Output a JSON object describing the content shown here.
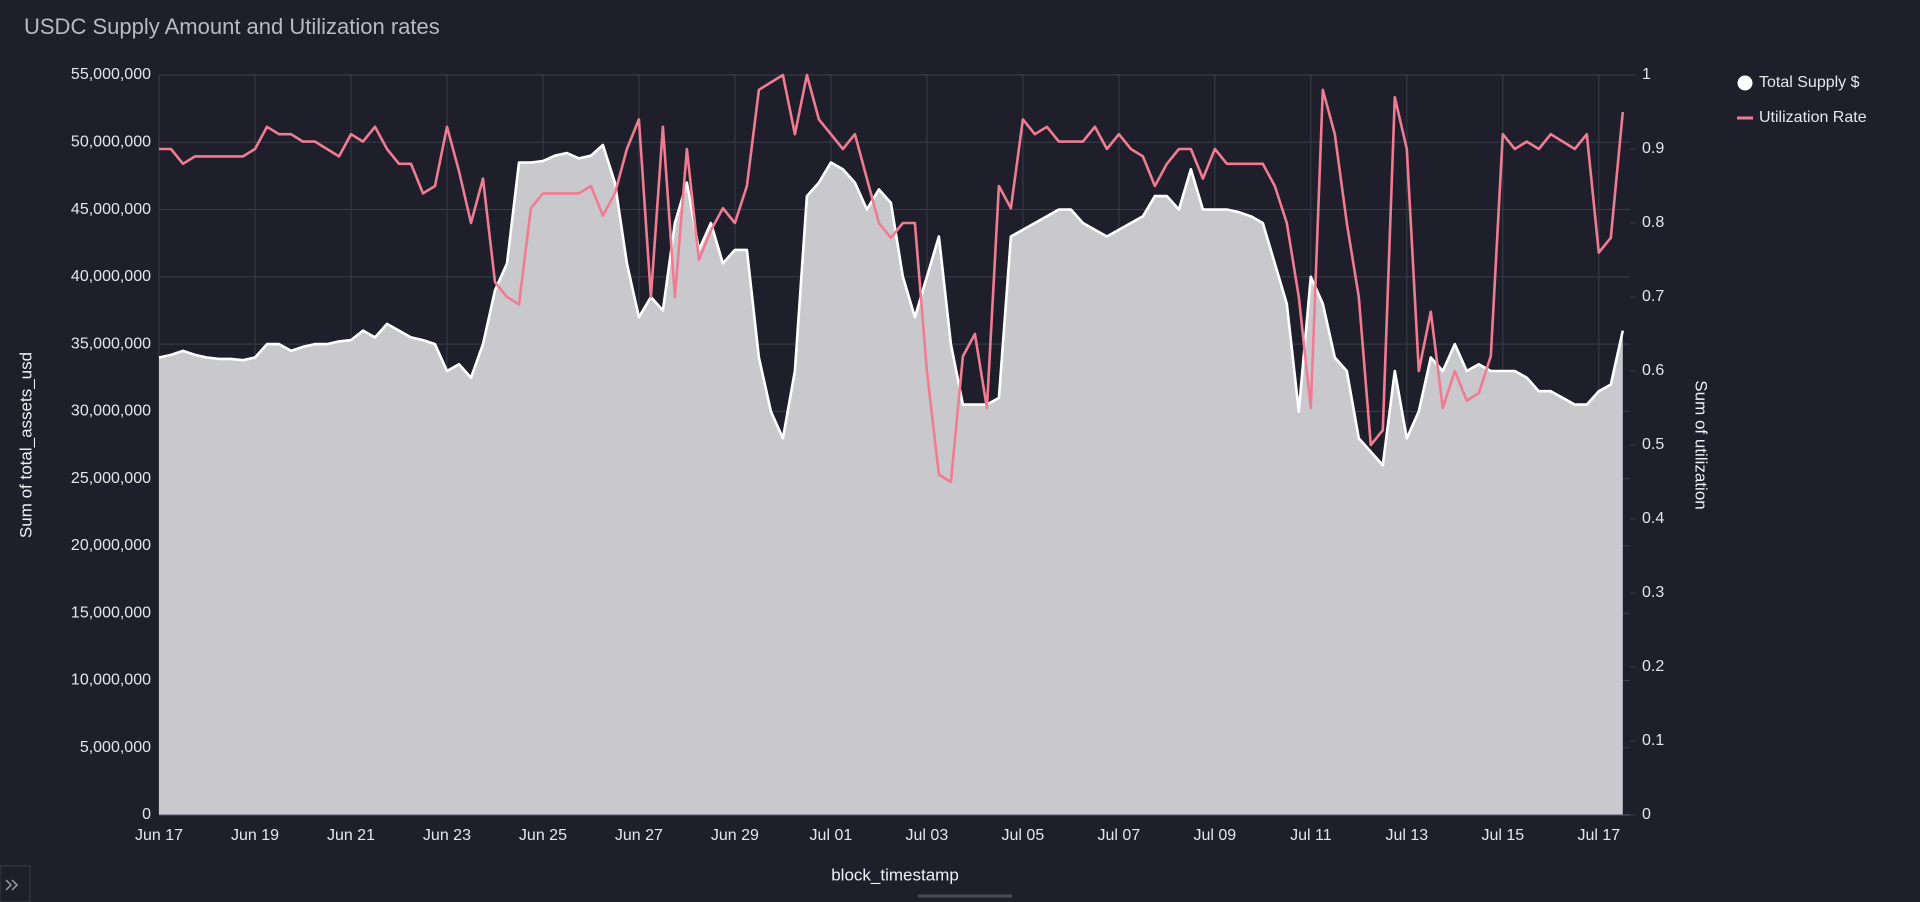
{
  "chart_data": {
    "type": "area_line",
    "title": "USDC Supply Amount and Utilization rates",
    "x_label": "block_timestamp",
    "y_label": "Sum of total_assets_usd",
    "y2_label": "Sum of utilization",
    "legend": "top-right",
    "grid": true,
    "categories": [
      "Jun 17",
      null,
      null,
      null,
      null,
      null,
      null,
      null,
      "Jun 19",
      null,
      null,
      null,
      null,
      null,
      null,
      null,
      "Jun 21",
      null,
      null,
      null,
      null,
      null,
      null,
      null,
      "Jun 23",
      null,
      null,
      null,
      null,
      null,
      null,
      null,
      "Jun 25",
      null,
      null,
      null,
      null,
      null,
      null,
      null,
      "Jun 27",
      null,
      null,
      null,
      null,
      null,
      null,
      null,
      "Jun 29",
      null,
      null,
      null,
      null,
      null,
      null,
      null,
      "Jul 01",
      null,
      null,
      null,
      null,
      null,
      null,
      null,
      "Jul 03",
      null,
      null,
      null,
      null,
      null,
      null,
      null,
      "Jul 05",
      null,
      null,
      null,
      null,
      null,
      null,
      null,
      "Jul 07",
      null,
      null,
      null,
      null,
      null,
      null,
      null,
      "Jul 09",
      null,
      null,
      null,
      null,
      null,
      null,
      null,
      "Jul 11",
      null,
      null,
      null,
      null,
      null,
      null,
      null,
      "Jul 13",
      null,
      null,
      null,
      null,
      null,
      null,
      null,
      "Jul 15",
      null,
      null,
      null,
      null,
      null,
      null,
      null,
      "Jul 17",
      null,
      null
    ],
    "series": [
      {
        "name": "Total Supply $",
        "color": "#ffffff",
        "area_color": "#c9c9cd",
        "axis": "y",
        "values": [
          34000000,
          34200000,
          34500000,
          34200000,
          34000000,
          33900000,
          33900000,
          33800000,
          34000000,
          35000000,
          35000000,
          34500000,
          34800000,
          35000000,
          35000000,
          35200000,
          35300000,
          36000000,
          35500000,
          36500000,
          36000000,
          35500000,
          35300000,
          35000000,
          33000000,
          33500000,
          32500000,
          35000000,
          39000000,
          41000000,
          48500000,
          48500000,
          48600000,
          49000000,
          49200000,
          48800000,
          49000000,
          49800000,
          47000000,
          41000000,
          37000000,
          38500000,
          37500000,
          44000000,
          47000000,
          42000000,
          44000000,
          41000000,
          42000000,
          42000000,
          34000000,
          30000000,
          28000000,
          33000000,
          46000000,
          47000000,
          48500000,
          48000000,
          47000000,
          45000000,
          46500000,
          45500000,
          40000000,
          37000000,
          40000000,
          43000000,
          35000000,
          30500000,
          30500000,
          30500000,
          31000000,
          43000000,
          43500000,
          44000000,
          44500000,
          45000000,
          45000000,
          44000000,
          43500000,
          43000000,
          43500000,
          44000000,
          44500000,
          46000000,
          46000000,
          45000000,
          48000000,
          45000000,
          45000000,
          45000000,
          44800000,
          44500000,
          44000000,
          41000000,
          38000000,
          30000000,
          40000000,
          38000000,
          34000000,
          33000000,
          28000000,
          27000000,
          26000000,
          33000000,
          28000000,
          30000000,
          34000000,
          33000000,
          35000000,
          33000000,
          33500000,
          33000000,
          33000000,
          33000000,
          32500000,
          31500000,
          31500000,
          31000000,
          30500000,
          30500000,
          31500000,
          32000000,
          36000000
        ]
      },
      {
        "name": "Utilization Rate",
        "color": "#f07c92",
        "axis": "y2",
        "values": [
          0.9,
          0.9,
          0.88,
          0.89,
          0.89,
          0.89,
          0.89,
          0.89,
          0.9,
          0.93,
          0.92,
          0.92,
          0.91,
          0.91,
          0.9,
          0.89,
          0.92,
          0.91,
          0.93,
          0.9,
          0.88,
          0.88,
          0.84,
          0.85,
          0.93,
          0.87,
          0.8,
          0.86,
          0.72,
          0.7,
          0.69,
          0.82,
          0.84,
          0.84,
          0.84,
          0.84,
          0.85,
          0.81,
          0.84,
          0.9,
          0.94,
          0.7,
          0.93,
          0.7,
          0.9,
          0.75,
          0.79,
          0.82,
          0.8,
          0.85,
          0.98,
          0.99,
          1.0,
          0.92,
          1.0,
          0.94,
          0.92,
          0.9,
          0.92,
          0.86,
          0.8,
          0.78,
          0.8,
          0.8,
          0.6,
          0.46,
          0.45,
          0.62,
          0.65,
          0.55,
          0.85,
          0.82,
          0.94,
          0.92,
          0.93,
          0.91,
          0.91,
          0.91,
          0.93,
          0.9,
          0.92,
          0.9,
          0.89,
          0.85,
          0.88,
          0.9,
          0.9,
          0.86,
          0.9,
          0.88,
          0.88,
          0.88,
          0.88,
          0.85,
          0.8,
          0.7,
          0.55,
          0.98,
          0.92,
          0.8,
          0.7,
          0.5,
          0.52,
          0.97,
          0.9,
          0.6,
          0.68,
          0.55,
          0.6,
          0.56,
          0.57,
          0.62,
          0.92,
          0.9,
          0.91,
          0.9,
          0.92,
          0.91,
          0.9,
          0.92,
          0.76,
          0.78,
          0.95
        ]
      }
    ],
    "ylim": [
      0,
      55000000
    ],
    "yticks": [
      0,
      {
        "value": 5000000,
        "label": "5,000,000"
      },
      {
        "value": 10000000,
        "label": "10,000,000"
      },
      {
        "value": 15000000,
        "label": "15,000,000"
      },
      {
        "value": 20000000,
        "label": "20,000,000"
      },
      {
        "value": 25000000,
        "label": "25,000,000"
      },
      {
        "value": 30000000,
        "label": "30,000,000"
      },
      {
        "value": 35000000,
        "label": "35,000,000"
      },
      {
        "value": 40000000,
        "label": "40,000,000"
      },
      {
        "value": 45000000,
        "label": "45,000,000"
      },
      {
        "value": 50000000,
        "label": "50,000,000"
      },
      {
        "value": 55000000,
        "label": "55,000,000"
      }
    ],
    "y2lim": [
      0,
      1
    ],
    "y2ticks": [
      0,
      0.1,
      0.2,
      0.3,
      0.4,
      0.5,
      0.6,
      0.7,
      0.8,
      0.9,
      1
    ]
  }
}
